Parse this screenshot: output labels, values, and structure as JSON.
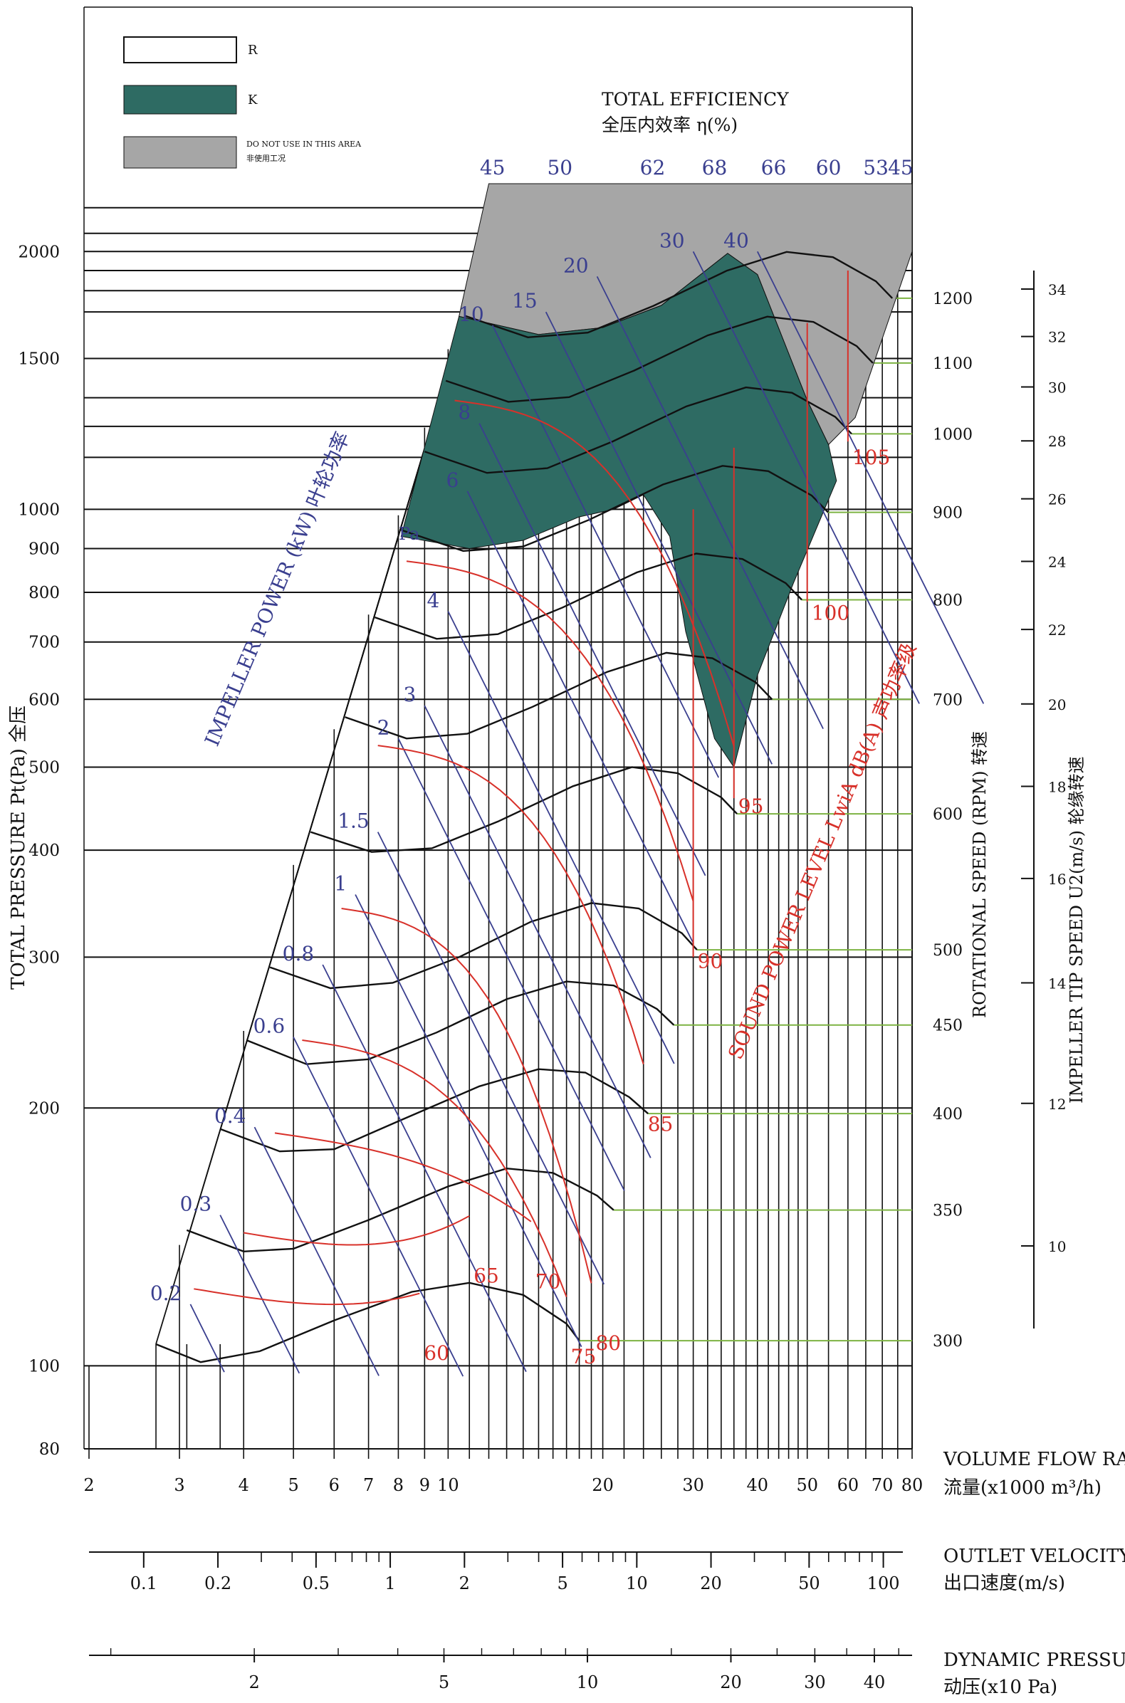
{
  "chart_data": {
    "type": "line",
    "legend": {
      "items": [
        {
          "label": "R",
          "swatch_color": "#ffffff"
        },
        {
          "label": "K",
          "swatch_color": "#2e6b63"
        },
        {
          "label_en": "DO NOT USE IN THIS AREA",
          "label_cn": "非使用工况",
          "swatch_color": "#a6a6a6"
        }
      ],
      "placement": "top-left"
    },
    "efficiency_title_en": "TOTAL EFFICIENCY",
    "efficiency_title_cn": "全压内效率 η(%)",
    "efficiency_ticks": [
      "45",
      "50",
      "62",
      "68",
      "66",
      "60",
      "53",
      "45"
    ],
    "pressure_axis": {
      "label": "TOTAL PRESSURE Pt(Pa) 全压",
      "scale": "log",
      "ticks": [
        80,
        100,
        200,
        300,
        400,
        500,
        600,
        700,
        800,
        900,
        1000,
        1500,
        2000
      ],
      "range": [
        80,
        2400
      ]
    },
    "flow_axis": {
      "label_en": "VOLUME FLOW RATE",
      "label_cn": "流量(x1000 m³/h)",
      "scale": "log",
      "ticks": [
        2,
        3,
        4,
        5,
        6,
        7,
        8,
        9,
        10,
        20,
        30,
        40,
        50,
        60,
        70,
        80
      ],
      "tick_labels": [
        "2",
        "3",
        "4",
        "5",
        "6",
        "7",
        "8",
        "9",
        "10",
        "20",
        "30",
        "40",
        "50",
        "60",
        "70",
        "80"
      ],
      "range": [
        2,
        80
      ]
    },
    "outlet_velocity_axis": {
      "label_en": "OUTLET VELOCITY",
      "label_cn": "出口速度(m/s)",
      "tick_labels": [
        "0.1",
        "0.2",
        "0.5",
        "1",
        "2",
        "5",
        "10",
        "20",
        "50",
        "100"
      ]
    },
    "dynamic_pressure_axis": {
      "label_en": "DYNAMIC PRESSURE",
      "label_cn": "动压(x10 Pa)",
      "tick_labels": [
        "2",
        "5",
        "10",
        "20",
        "30",
        "40"
      ]
    },
    "rotational_speed_axis": {
      "label": "ROTATIONAL SPEED (RPM) 转速",
      "values": [
        300,
        350,
        400,
        450,
        500,
        600,
        700,
        800,
        900,
        1000,
        1100,
        1200
      ]
    },
    "tip_speed_axis": {
      "label": "IMPELLER TIP SPEED U2(m/s) 轮缘转速",
      "values": [
        10,
        12,
        14,
        16,
        18,
        20,
        22,
        24,
        26,
        28,
        30,
        32,
        34
      ]
    },
    "impeller_power": {
      "label": "IMPELLER POWER (kW) 叶轮功率",
      "values": [
        "0.2",
        "0.3",
        "0.4",
        "0.6",
        "0.8",
        "1",
        "1.5",
        "2",
        "3",
        "4",
        "6",
        "8",
        "10",
        "15",
        "20",
        "30",
        "40"
      ],
      "unit_marker": "Pa"
    },
    "sound_power": {
      "label": "SOUND POWER LEVEL LwiA dB(A) 声功率级",
      "values": [
        "60",
        "65",
        "70",
        "75",
        "80",
        "85",
        "90",
        "95",
        "100",
        "105"
      ]
    },
    "pressure_curves": [
      {
        "rpm": 300,
        "points": [
          [
            2.7,
            106
          ],
          [
            3.3,
            101
          ],
          [
            4.3,
            104
          ],
          [
            6,
            113
          ],
          [
            8.5,
            122
          ],
          [
            11,
            125
          ],
          [
            14,
            121
          ],
          [
            17,
            112
          ],
          [
            18,
            107
          ]
        ]
      },
      {
        "rpm": 350,
        "points": [
          [
            3.1,
            144
          ],
          [
            4,
            136
          ],
          [
            5,
            137
          ],
          [
            7,
            148
          ],
          [
            10,
            162
          ],
          [
            13,
            170
          ],
          [
            16,
            168
          ],
          [
            19.5,
            158
          ],
          [
            21,
            152
          ]
        ]
      },
      {
        "rpm": 400,
        "points": [
          [
            3.6,
            189
          ],
          [
            4.7,
            178
          ],
          [
            6,
            179
          ],
          [
            8,
            193
          ],
          [
            11.5,
            212
          ],
          [
            15,
            222
          ],
          [
            18.5,
            220
          ],
          [
            22.5,
            206
          ],
          [
            24.5,
            197
          ]
        ]
      },
      {
        "rpm": 450,
        "points": [
          [
            4.05,
            240
          ],
          [
            5.3,
            225
          ],
          [
            7,
            228
          ],
          [
            9.5,
            245
          ],
          [
            13,
            268
          ],
          [
            17,
            281
          ],
          [
            21,
            278
          ],
          [
            25.5,
            261
          ],
          [
            27.5,
            250
          ]
        ]
      },
      {
        "rpm": 500,
        "points": [
          [
            4.5,
            292
          ],
          [
            5.9,
            276
          ],
          [
            7.8,
            280
          ],
          [
            10.5,
            300
          ],
          [
            14.5,
            330
          ],
          [
            19,
            347
          ],
          [
            23.5,
            342
          ],
          [
            28.5,
            320
          ],
          [
            30.5,
            306
          ]
        ]
      },
      {
        "rpm": 600,
        "points": [
          [
            5.4,
            420
          ],
          [
            7.1,
            398
          ],
          [
            9.3,
            402
          ],
          [
            12.5,
            432
          ],
          [
            17.5,
            475
          ],
          [
            22.8,
            500
          ],
          [
            28,
            492
          ],
          [
            34,
            461
          ],
          [
            36.5,
            441
          ]
        ]
      },
      {
        "rpm": 700,
        "points": [
          [
            6.3,
            572
          ],
          [
            8.3,
            540
          ],
          [
            10.9,
            547
          ],
          [
            14.6,
            588
          ],
          [
            20.4,
            646
          ],
          [
            26.6,
            680
          ],
          [
            32.7,
            670
          ],
          [
            39.7,
            628
          ],
          [
            42.7,
            600
          ]
        ]
      },
      {
        "rpm": 800,
        "points": [
          [
            7.2,
            748
          ],
          [
            9.5,
            706
          ],
          [
            12.5,
            715
          ],
          [
            16.7,
            768
          ],
          [
            23.3,
            844
          ],
          [
            30.4,
            888
          ],
          [
            37.4,
            875
          ],
          [
            45.4,
            820
          ],
          [
            48.8,
            784
          ]
        ]
      },
      {
        "rpm": 900,
        "points": [
          [
            8.1,
            946
          ],
          [
            10.7,
            894
          ],
          [
            14,
            905
          ],
          [
            18.8,
            972
          ],
          [
            26.2,
            1069
          ],
          [
            34.2,
            1124
          ],
          [
            42,
            1108
          ],
          [
            51,
            1038
          ],
          [
            54.9,
            992
          ]
        ]
      },
      {
        "rpm": 1000,
        "points": [
          [
            9,
            1168
          ],
          [
            11.9,
            1103
          ],
          [
            15.6,
            1117
          ],
          [
            20.9,
            1200
          ],
          [
            29.1,
            1319
          ],
          [
            38,
            1388
          ],
          [
            46.7,
            1368
          ],
          [
            56.7,
            1282
          ],
          [
            61,
            1225
          ]
        ]
      },
      {
        "rpm": 1100,
        "points": [
          [
            9.9,
            1413
          ],
          [
            13.1,
            1335
          ],
          [
            17.2,
            1352
          ],
          [
            23,
            1452
          ],
          [
            32,
            1596
          ],
          [
            41.8,
            1679
          ],
          [
            51.4,
            1655
          ],
          [
            62.4,
            1551
          ],
          [
            67.1,
            1482
          ]
        ]
      },
      {
        "rpm": 1200,
        "points": [
          [
            10.8,
            1682
          ],
          [
            14.3,
            1588
          ],
          [
            18.7,
            1608
          ],
          [
            25.1,
            1728
          ],
          [
            34.9,
            1900
          ],
          [
            45.6,
            1998
          ],
          [
            56.1,
            1970
          ],
          [
            68,
            1846
          ],
          [
            73.2,
            1764
          ]
        ]
      }
    ]
  }
}
